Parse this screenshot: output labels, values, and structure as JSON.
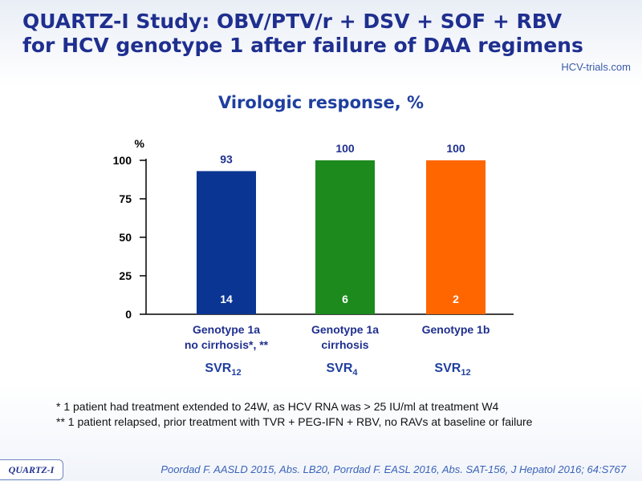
{
  "header": {
    "title_line1": "QUARTZ-I Study: OBV/PTV/r + DSV + SOF + RBV",
    "title_line2": "for HCV genotype 1 after failure of DAA regimens",
    "logo_text": "HCV-trials.com"
  },
  "chart_data": {
    "type": "bar",
    "title": "Virologic response, %",
    "ylabel": "%",
    "ylim": [
      0,
      100
    ],
    "yticks": [
      0,
      25,
      50,
      75,
      100
    ],
    "categories": [
      "Genotype 1a\nno cirrhosis*, **",
      "Genotype 1a\ncirrhosis",
      "Genotype 1b"
    ],
    "category_lines": [
      [
        "Genotype 1a",
        "no cirrhosis*, **"
      ],
      [
        "Genotype 1a",
        "cirrhosis"
      ],
      [
        "Genotype 1b"
      ]
    ],
    "endpoints": [
      {
        "main": "SVR",
        "sub": "12"
      },
      {
        "main": "SVR",
        "sub": "4"
      },
      {
        "main": "SVR",
        "sub": "12"
      }
    ],
    "values": [
      93,
      100,
      100
    ],
    "value_labels": [
      "93",
      "100",
      "100"
    ],
    "counts": [
      "14",
      "6",
      "2"
    ],
    "colors": [
      "#0a3593",
      "#1c8a1c",
      "#ff6600"
    ],
    "grid": false
  },
  "footnotes": [
    "* 1 patient had treatment extended to 24W, as HCV RNA was > 25 IU/ml at treatment W4",
    "** 1 patient relapsed, prior treatment with TVR + PEG-IFN + RBV, no RAVs at baseline or failure"
  ],
  "citation": "Poordad F. AASLD 2015, Abs. LB20, Porrdad F. EASL 2016, Abs. SAT-156, J Hepatol 2016; 64:S767",
  "study_tag": "QUARTZ-I"
}
